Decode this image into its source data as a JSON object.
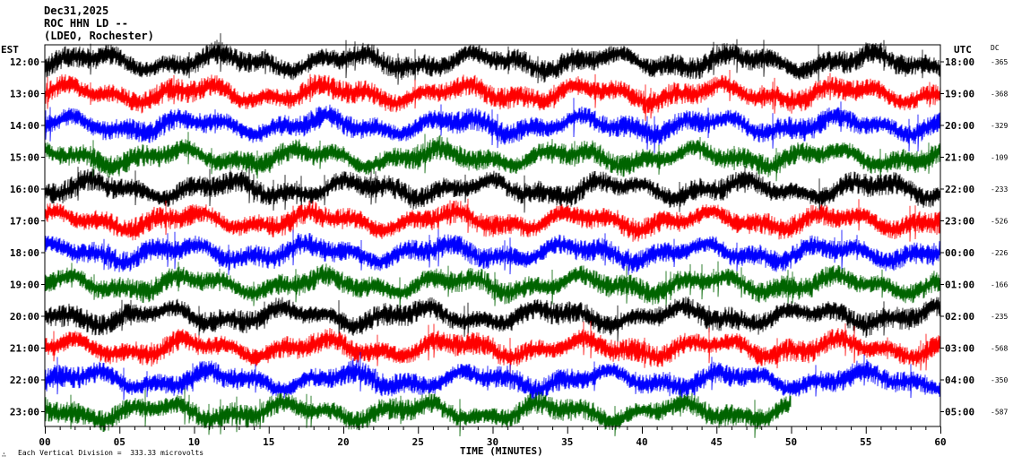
{
  "header": {
    "date": "Dec31,2025",
    "station": "ROC HHN LD --",
    "network": "(LDEO, Rochester)"
  },
  "left_axis_label": "EST",
  "right_axis_label": "UTC",
  "dc_label": "DC",
  "x_axis_title": "TIME (MINUTES)",
  "footer_note": "Each Vertical Division =  333.33 microvolts",
  "chart_data": {
    "type": "line",
    "title": "",
    "xlabel": "TIME (MINUTES)",
    "ylabel": "",
    "xlim": [
      0,
      60
    ],
    "x_ticks": [
      "00",
      "05",
      "10",
      "15",
      "20",
      "25",
      "30",
      "35",
      "40",
      "45",
      "50",
      "55",
      "60"
    ],
    "traces": [
      {
        "est": "12:00",
        "utc": "18:00",
        "dc": "-365",
        "color": "#000000",
        "end_minute": 60
      },
      {
        "est": "13:00",
        "utc": "19:00",
        "dc": "-368",
        "color": "#ff0000",
        "end_minute": 60
      },
      {
        "est": "14:00",
        "utc": "20:00",
        "dc": "-329",
        "color": "#0000ff",
        "end_minute": 60
      },
      {
        "est": "15:00",
        "utc": "21:00",
        "dc": "-109",
        "color": "#006400",
        "end_minute": 60
      },
      {
        "est": "16:00",
        "utc": "22:00",
        "dc": "-233",
        "color": "#000000",
        "end_minute": 60
      },
      {
        "est": "17:00",
        "utc": "23:00",
        "dc": "-526",
        "color": "#ff0000",
        "end_minute": 60
      },
      {
        "est": "18:00",
        "utc": "00:00",
        "dc": "-226",
        "color": "#0000ff",
        "end_minute": 60
      },
      {
        "est": "19:00",
        "utc": "01:00",
        "dc": "-166",
        "color": "#006400",
        "end_minute": 60
      },
      {
        "est": "20:00",
        "utc": "02:00",
        "dc": "-235",
        "color": "#000000",
        "end_minute": 60
      },
      {
        "est": "21:00",
        "utc": "03:00",
        "dc": "-568",
        "color": "#ff0000",
        "end_minute": 60
      },
      {
        "est": "22:00",
        "utc": "04:00",
        "dc": "-350",
        "color": "#0000ff",
        "end_minute": 60
      },
      {
        "est": "23:00",
        "utc": "05:00",
        "dc": "-587",
        "color": "#006400",
        "end_minute": 50
      }
    ]
  }
}
